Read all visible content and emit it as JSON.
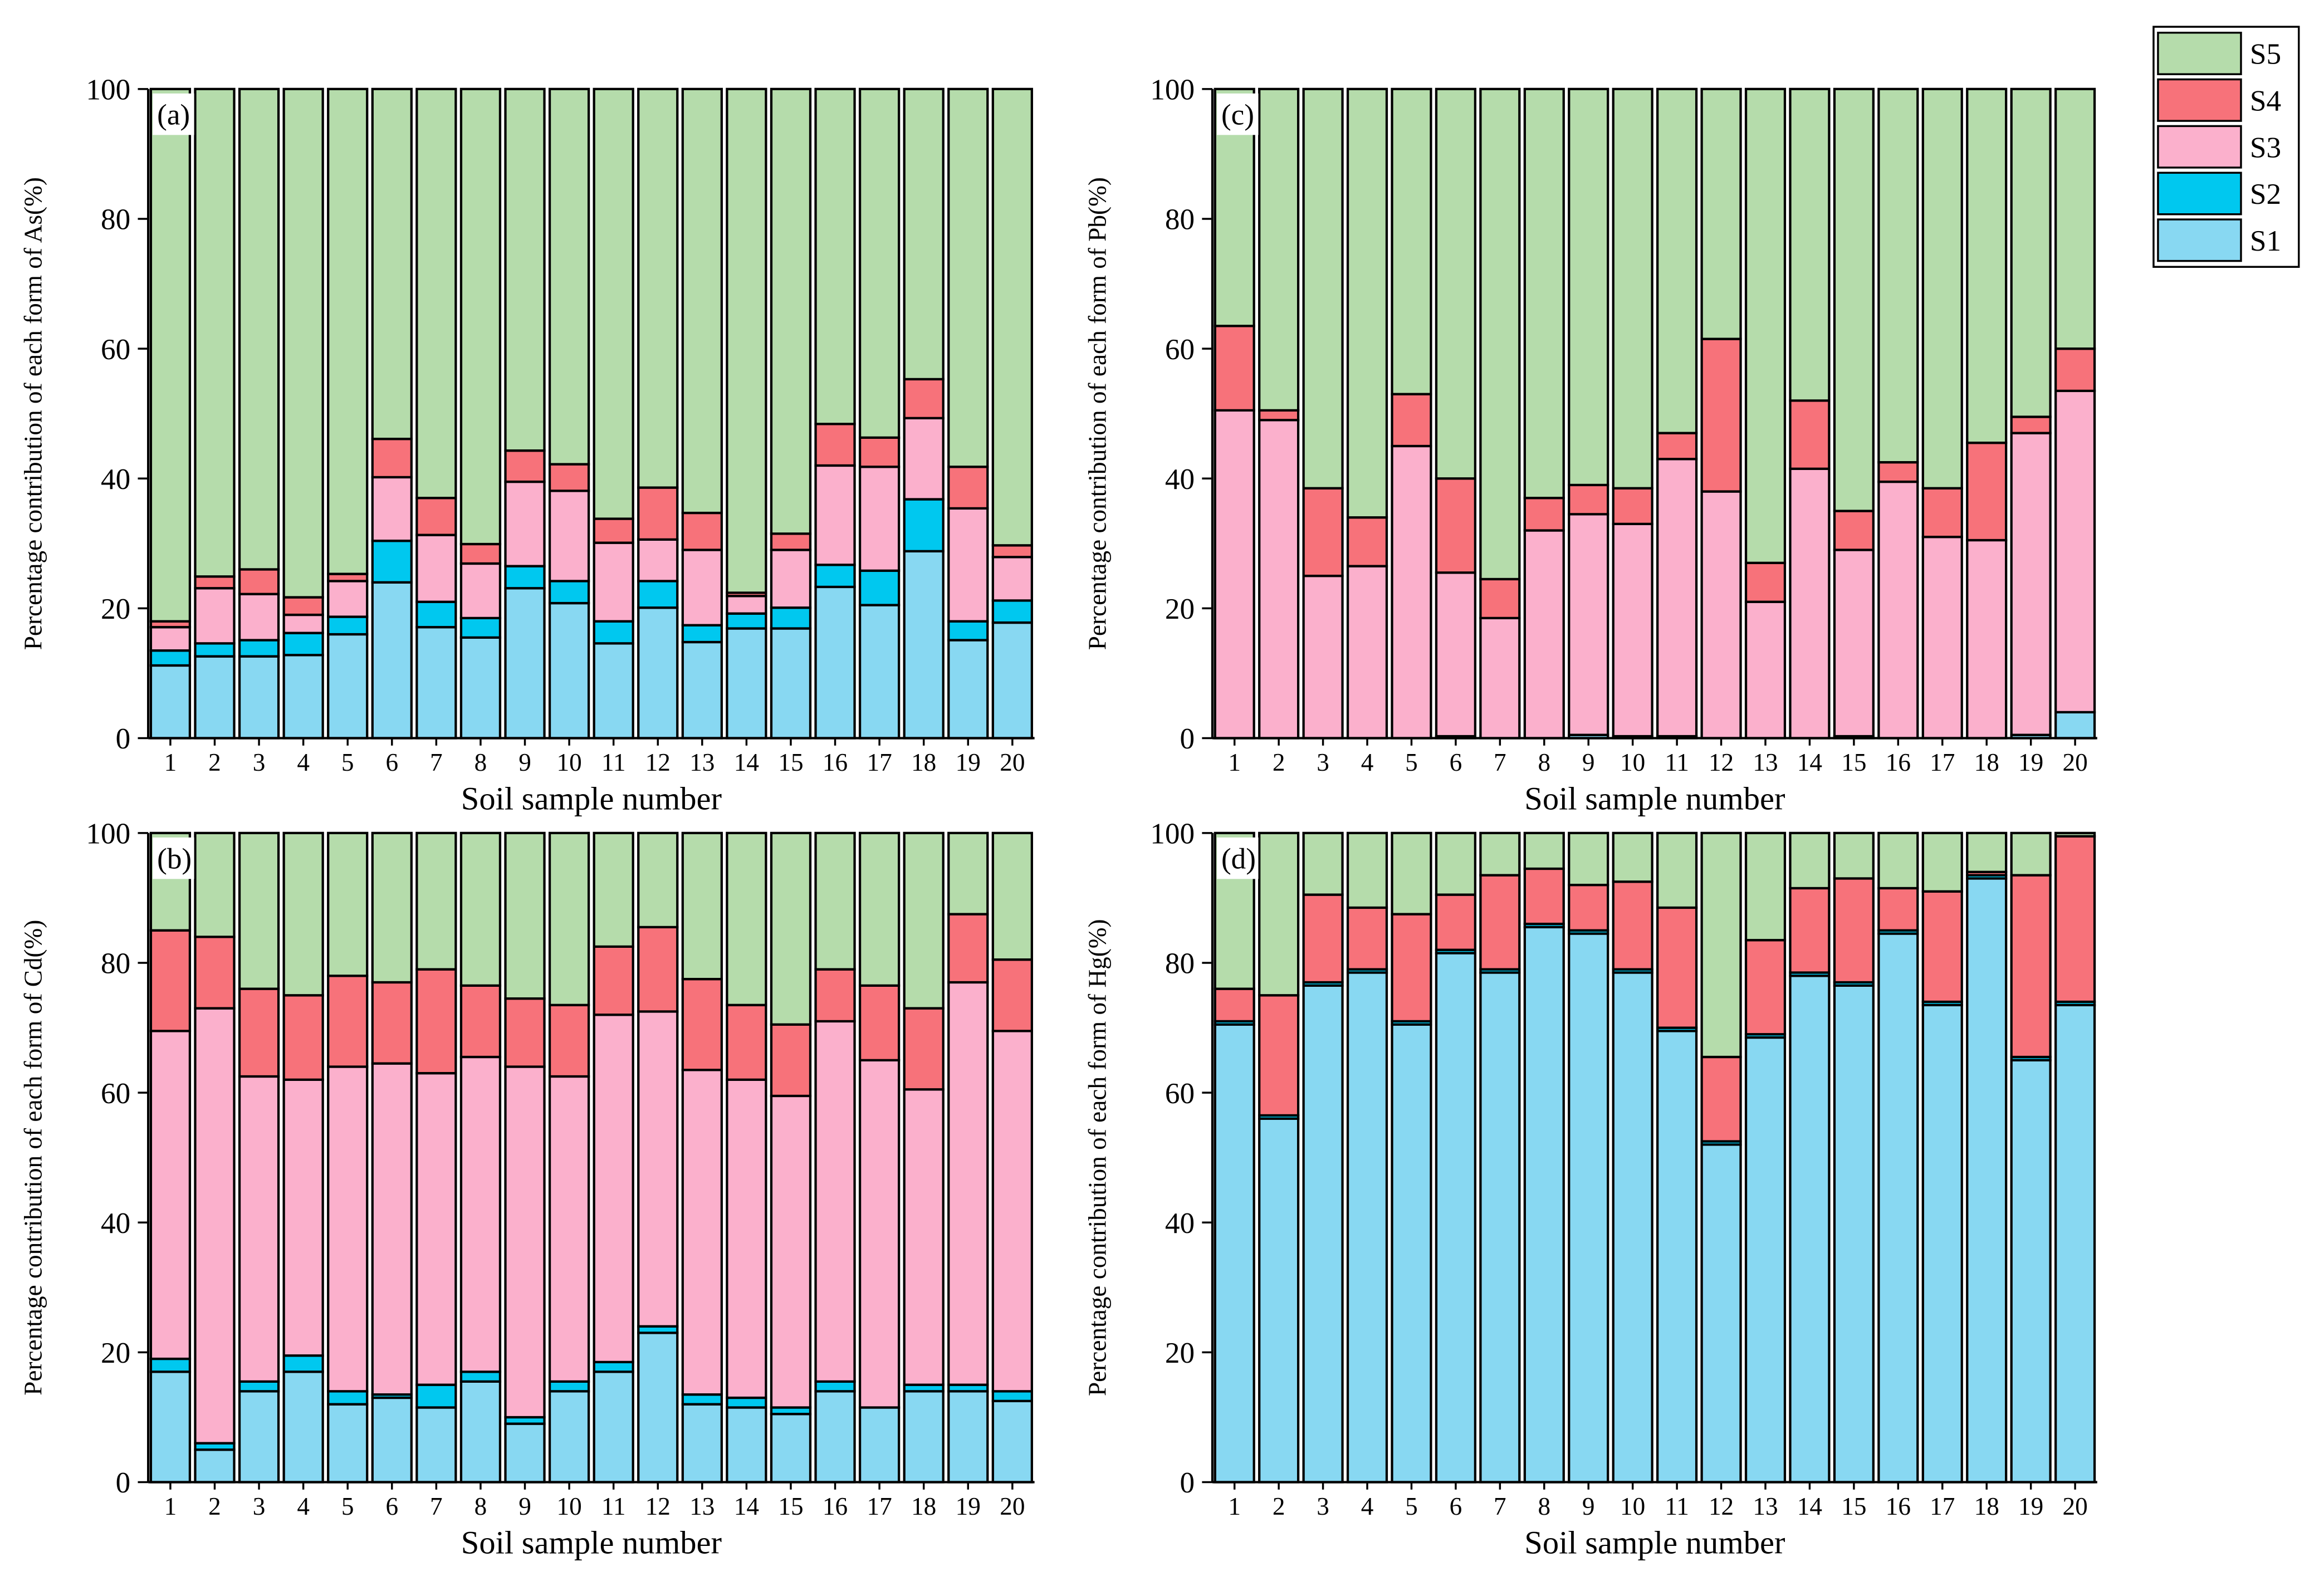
{
  "chart_data": [
    {
      "type": "bar",
      "stacked": true,
      "title": "(a)",
      "xlabel": "Soil sample number",
      "ylabel": "Percentage contribution of each form of As(%)",
      "categories": [
        "1",
        "2",
        "3",
        "4",
        "5",
        "6",
        "7",
        "8",
        "9",
        "10",
        "11",
        "12",
        "13",
        "14",
        "15",
        "16",
        "17",
        "18",
        "19",
        "20"
      ],
      "ylim": [
        0,
        100
      ],
      "yticks": [
        0,
        20,
        40,
        60,
        80,
        100
      ],
      "series": [
        {
          "name": "S1",
          "color": "#88d8f2",
          "values": [
            11.2,
            12.6,
            12.6,
            12.8,
            16.0,
            24.0,
            17.1,
            15.5,
            23.1,
            20.8,
            14.6,
            20.1,
            14.8,
            16.9,
            16.9,
            23.3,
            20.5,
            28.8,
            15.1,
            17.8
          ]
        },
        {
          "name": "S2",
          "color": "#00c8ef",
          "values": [
            2.3,
            2.0,
            2.5,
            3.4,
            2.7,
            6.4,
            3.9,
            3.0,
            3.4,
            3.4,
            3.4,
            4.1,
            2.6,
            2.3,
            3.2,
            3.4,
            5.3,
            8.0,
            2.9,
            3.4
          ]
        },
        {
          "name": "S3",
          "color": "#fbb0cc",
          "values": [
            3.6,
            8.5,
            7.1,
            2.8,
            5.5,
            9.8,
            10.3,
            8.4,
            13.0,
            13.9,
            12.1,
            6.4,
            11.6,
            2.7,
            8.9,
            15.3,
            16.0,
            12.5,
            17.4,
            6.7
          ]
        },
        {
          "name": "S4",
          "color": "#f7727a",
          "values": [
            0.9,
            1.8,
            3.8,
            2.7,
            1.1,
            5.9,
            5.7,
            3.0,
            4.8,
            4.1,
            3.7,
            8.0,
            5.7,
            0.5,
            2.5,
            6.4,
            4.5,
            6.0,
            6.4,
            1.8
          ]
        },
        {
          "name": "S5",
          "color": "#b5dcab",
          "values": [
            82.0,
            75.1,
            74.0,
            78.3,
            74.7,
            53.9,
            63.0,
            70.1,
            55.7,
            57.8,
            66.2,
            61.4,
            65.3,
            77.6,
            68.5,
            51.6,
            53.7,
            44.7,
            58.2,
            70.3
          ]
        }
      ]
    },
    {
      "type": "bar",
      "stacked": true,
      "title": "(c)",
      "xlabel": "Soil sample number",
      "ylabel": "Percentage contribution of each form of Pb(%)",
      "categories": [
        "1",
        "2",
        "3",
        "4",
        "5",
        "6",
        "7",
        "8",
        "9",
        "10",
        "11",
        "12",
        "13",
        "14",
        "15",
        "16",
        "17",
        "18",
        "19",
        "20"
      ],
      "ylim": [
        0,
        100
      ],
      "yticks": [
        0,
        20,
        40,
        60,
        80,
        100
      ],
      "series": [
        {
          "name": "S1",
          "color": "#88d8f2",
          "values": [
            0,
            0,
            0,
            0,
            0,
            0.3,
            0,
            0,
            0.5,
            0.3,
            0.3,
            0,
            0,
            0,
            0.3,
            0,
            0,
            0,
            0.5,
            4
          ]
        },
        {
          "name": "S2",
          "color": "#00c8ef",
          "values": [
            0,
            0,
            0,
            0,
            0,
            0,
            0,
            0,
            0,
            0,
            0,
            0,
            0,
            0,
            0,
            0,
            0,
            0,
            0,
            0
          ]
        },
        {
          "name": "S3",
          "color": "#fbb0cc",
          "values": [
            50.5,
            49,
            25,
            26.5,
            45,
            25.2,
            18.5,
            32,
            34,
            32.7,
            42.7,
            38,
            21,
            41.5,
            28.7,
            39.5,
            31,
            30.5,
            46.5,
            49.5
          ]
        },
        {
          "name": "S4",
          "color": "#f7727a",
          "values": [
            13,
            1.5,
            13.5,
            7.5,
            8,
            14.5,
            6,
            5,
            4.5,
            5.5,
            4,
            23.5,
            6,
            10.5,
            6,
            3,
            7.5,
            15,
            2.5,
            6.5
          ]
        },
        {
          "name": "S5",
          "color": "#b5dcab",
          "values": [
            36.5,
            49.5,
            61.5,
            66,
            47,
            60,
            75.5,
            63,
            61,
            61.5,
            53,
            38.5,
            73,
            48,
            65,
            57.5,
            61.5,
            54.5,
            50.5,
            40
          ]
        }
      ]
    },
    {
      "type": "bar",
      "stacked": true,
      "title": "(b)",
      "xlabel": "Soil sample number",
      "ylabel": "Percentage contribution of each form of Cd(%)",
      "categories": [
        "1",
        "2",
        "3",
        "4",
        "5",
        "6",
        "7",
        "8",
        "9",
        "10",
        "11",
        "12",
        "13",
        "14",
        "15",
        "16",
        "17",
        "18",
        "19",
        "20"
      ],
      "ylim": [
        0,
        100
      ],
      "yticks": [
        0,
        20,
        40,
        60,
        80,
        100
      ],
      "series": [
        {
          "name": "S1",
          "color": "#88d8f2",
          "values": [
            17,
            5,
            14,
            17,
            12,
            13,
            11.5,
            15.5,
            9,
            14,
            17,
            23,
            12,
            11.5,
            10.5,
            14,
            11.5,
            14,
            14,
            12.5
          ]
        },
        {
          "name": "S2",
          "color": "#00c8ef",
          "values": [
            2,
            1,
            1.5,
            2.5,
            2,
            0.5,
            3.5,
            1.5,
            1,
            1.5,
            1.5,
            1,
            1.5,
            1.5,
            1,
            1.5,
            0,
            1,
            1,
            1.5
          ]
        },
        {
          "name": "S3",
          "color": "#fbb0cc",
          "values": [
            50.5,
            67,
            47,
            42.5,
            50,
            51,
            48,
            48.5,
            54,
            47,
            53.5,
            48.5,
            50,
            49,
            48,
            55.5,
            53.5,
            45.5,
            62,
            55.5
          ]
        },
        {
          "name": "S4",
          "color": "#f7727a",
          "values": [
            15.5,
            11,
            13.5,
            13,
            14,
            12.5,
            16,
            11,
            10.5,
            11,
            10.5,
            13,
            14,
            11.5,
            11,
            8,
            11.5,
            12.5,
            10.5,
            11
          ]
        },
        {
          "name": "S5",
          "color": "#b5dcab",
          "values": [
            15,
            16,
            24,
            25,
            22,
            23,
            21,
            23.5,
            25.5,
            26.5,
            17.5,
            14.5,
            22.5,
            26.5,
            29.5,
            21,
            23.5,
            27,
            12.5,
            19.5
          ]
        }
      ]
    },
    {
      "type": "bar",
      "stacked": true,
      "title": "(d)",
      "xlabel": "Soil sample number",
      "ylabel": "Percentage contribution of each form of Hg(%)",
      "categories": [
        "1",
        "2",
        "3",
        "4",
        "5",
        "6",
        "7",
        "8",
        "9",
        "10",
        "11",
        "12",
        "13",
        "14",
        "15",
        "16",
        "17",
        "18",
        "19",
        "20"
      ],
      "ylim": [
        0,
        100
      ],
      "yticks": [
        0,
        20,
        40,
        60,
        80,
        100
      ],
      "series": [
        {
          "name": "S1",
          "color": "#88d8f2",
          "values": [
            70.5,
            56,
            76.5,
            78.5,
            70.5,
            81.5,
            78.5,
            85.5,
            84.5,
            78.5,
            69.5,
            52,
            68.5,
            78,
            76.5,
            84.5,
            73.5,
            93,
            65,
            73.5
          ]
        },
        {
          "name": "S2",
          "color": "#00c8ef",
          "values": [
            0.5,
            0.5,
            0.5,
            0.5,
            0.5,
            0.5,
            0.5,
            0.5,
            0.5,
            0.5,
            0.5,
            0.5,
            0.5,
            0.5,
            0.5,
            0.5,
            0.5,
            0.5,
            0.5,
            0.5
          ]
        },
        {
          "name": "S3",
          "color": "#fbb0cc",
          "values": [
            0,
            0,
            0,
            0,
            0,
            0,
            0,
            0,
            0,
            0,
            0,
            0,
            0,
            0,
            0,
            0,
            0,
            0,
            0,
            0
          ]
        },
        {
          "name": "S4",
          "color": "#f7727a",
          "values": [
            5,
            18.5,
            13.5,
            9.5,
            16.5,
            8.5,
            14.5,
            8.5,
            7,
            13.5,
            18.5,
            13,
            14.5,
            13,
            16,
            6.5,
            17,
            0.5,
            28,
            25.5
          ]
        },
        {
          "name": "S5",
          "color": "#b5dcab",
          "values": [
            24,
            25,
            9.5,
            11.5,
            12.5,
            9.5,
            6.5,
            5.5,
            8,
            7.5,
            11.5,
            34.5,
            16.5,
            8.5,
            7,
            8.5,
            9,
            6,
            6.5,
            0.5
          ]
        }
      ]
    }
  ]
}
